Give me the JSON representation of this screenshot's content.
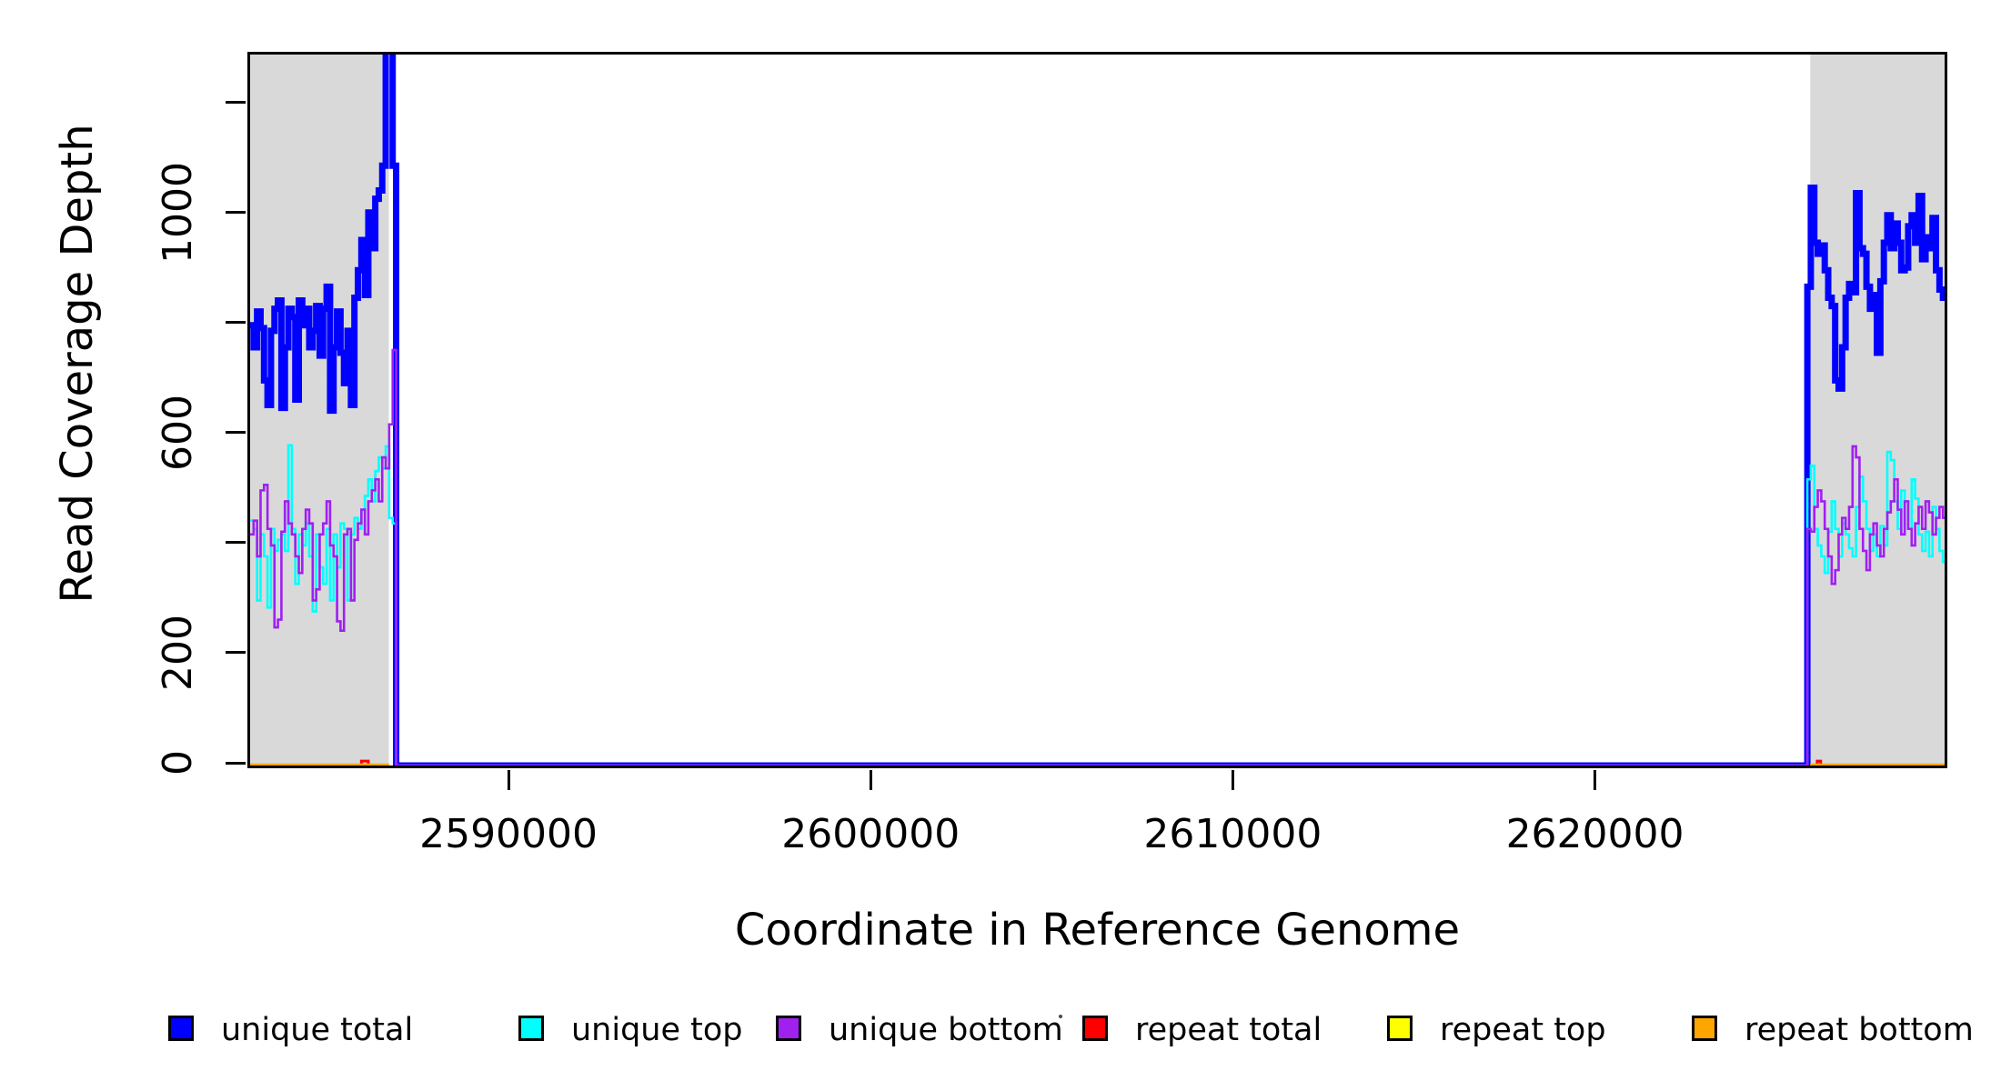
{
  "figure_title": "",
  "axes": {
    "x": {
      "label": "Coordinate in Reference Genome",
      "tick_values": [
        2590000,
        2600000,
        2610000,
        2620000
      ],
      "tick_labels": [
        "2590000",
        "2600000",
        "2610000",
        "2620000"
      ]
    },
    "y": {
      "label": "Read Coverage Depth",
      "tick_values": [
        0,
        200,
        400,
        600,
        800,
        1000,
        1200
      ],
      "labeled_tick_values": [
        0,
        200,
        600,
        1000
      ],
      "labeled_tick_labels": [
        "0",
        "200",
        "600",
        "1000"
      ]
    }
  },
  "colors": {
    "unique_total": "#0000FF",
    "unique_top": "#00FFFF",
    "unique_bottom": "#A020F0",
    "repeat_total": "#FF0000",
    "repeat_top": "#FFFF00",
    "repeat_bottom": "#FFA500",
    "shaded_region": "#D9D9D9",
    "axis": "#000000"
  },
  "legend": {
    "items": [
      {
        "label": "unique total",
        "color": "#0000FF"
      },
      {
        "label": "unique top",
        "color": "#00FFFF"
      },
      {
        "label": "unique bottom",
        "color": "#A020F0"
      },
      {
        "label": "repeat total",
        "color": "#FF0000"
      },
      {
        "label": "repeat top",
        "color": "#FFFF00"
      },
      {
        "label": "repeat bottom",
        "color": "#FFA500"
      }
    ]
  },
  "chart_data": {
    "type": "line",
    "subtype": "step-coverage",
    "title": "",
    "xlabel": "Coordinate in Reference Genome",
    "ylabel": "Read Coverage Depth",
    "xlim": [
      2582790,
      2629580
    ],
    "ylim": [
      0,
      1292
    ],
    "grid": false,
    "legend_position": "bottom",
    "shaded_regions": [
      {
        "x0": 2582790,
        "x1": 2586620,
        "color": "#D9D9D9"
      },
      {
        "x0": 2625870,
        "x1": 2629580,
        "color": "#D9D9D9"
      }
    ],
    "window_size": 96,
    "series": [
      {
        "name": "unique total",
        "color": "#0000FF",
        "line_width": 7,
        "bridge_to_zero": true,
        "segments": [
          {
            "x0": 2582790,
            "dx": 96,
            "values": [
              800,
              760,
              825,
              795,
              700,
              655,
              790,
              830,
              845,
              650,
              760,
              830,
              815,
              665,
              845,
              800,
              830,
              760,
              790,
              835,
              745,
              830,
              870,
              645,
              760,
              825,
              750,
              695,
              790,
              655,
              850,
              900,
              955,
              855,
              1005,
              940,
              1030,
              1045,
              1090,
              1310,
              1310,
              1090
            ]
          },
          {
            "x0": 2625790,
            "dx": 96,
            "values": [
              870,
              1050,
              950,
              930,
              945,
              900,
              850,
              835,
              700,
              685,
              760,
              850,
              875,
              860,
              1040,
              940,
              930,
              870,
              830,
              855,
              750,
              880,
              950,
              1000,
              940,
              985,
              950,
              900,
              905,
              980,
              1000,
              950,
              1035,
              920,
              960,
              940,
              995,
              900,
              865,
              850
            ]
          }
        ]
      },
      {
        "name": "unique top",
        "color": "#00FFFF",
        "line_width": 2.6,
        "bridge_to_zero": true,
        "segments": [
          {
            "x0": 2582790,
            "dx": 96,
            "values": [
              445,
              430,
              300,
              420,
              380,
              287,
              430,
              390,
              410,
              420,
              390,
              582,
              430,
              330,
              420,
              400,
              440,
              380,
              280,
              420,
              360,
              330,
              430,
              300,
              420,
              360,
              440,
              430,
              300,
              420,
              450,
              430,
              465,
              490,
              520,
              480,
              535,
              560,
              540,
              580,
              450,
              440
            ]
          },
          {
            "x0": 2625790,
            "dx": 96,
            "values": [
              520,
              545,
              430,
              400,
              380,
              350,
              425,
              480,
              430,
              380,
              440,
              420,
              395,
              380,
              470,
              525,
              480,
              430,
              390,
              420,
              380,
              435,
              400,
              570,
              555,
              480,
              430,
              500,
              480,
              430,
              520,
              485,
              420,
              390,
              425,
              380,
              470,
              430,
              390,
              370
            ]
          }
        ]
      },
      {
        "name": "unique bottom",
        "color": "#A020F0",
        "line_width": 2.6,
        "bridge_to_zero": true,
        "segments": [
          {
            "x0": 2582790,
            "dx": 96,
            "values": [
              420,
              445,
              380,
              500,
              510,
              430,
              400,
              251,
              265,
              425,
              480,
              440,
              420,
              380,
              350,
              430,
              465,
              440,
              300,
              320,
              420,
              440,
              480,
              400,
              380,
              262,
              245,
              420,
              430,
              300,
              410,
              440,
              465,
              420,
              480,
              500,
              520,
              480,
              560,
              540,
              620,
              755
            ]
          },
          {
            "x0": 2625790,
            "dx": 96,
            "values": [
              430,
              425,
              470,
              500,
              480,
              430,
              380,
              330,
              355,
              420,
              450,
              430,
              470,
              580,
              560,
              430,
              390,
              355,
              420,
              440,
              400,
              380,
              430,
              460,
              480,
              520,
              465,
              420,
              480,
              430,
              400,
              440,
              470,
              430,
              480,
              460,
              420,
              450,
              470,
              450
            ]
          }
        ]
      },
      {
        "name": "repeat total",
        "color": "#FF0000",
        "line_width": 3,
        "bridge_to_zero": false,
        "segments": [
          {
            "x0": 2582790,
            "dx": 96,
            "values": [
              0,
              0,
              0,
              0,
              0,
              0,
              0,
              0,
              0,
              0,
              0,
              0,
              0,
              0,
              0,
              0,
              0,
              0,
              0,
              0,
              0,
              0,
              0,
              0,
              0,
              0,
              0,
              0,
              0,
              0,
              0,
              0,
              8,
              8,
              0,
              0,
              0,
              0,
              0,
              0
            ]
          },
          {
            "x0": 2625870,
            "dx": 96,
            "values": [
              0,
              0,
              8,
              0,
              0,
              0,
              0,
              0,
              0,
              0,
              0,
              0,
              0,
              0,
              0,
              0,
              0,
              0,
              0,
              0,
              0,
              0,
              0,
              0,
              0,
              0,
              0,
              0,
              0,
              0,
              0,
              0,
              0,
              0,
              0,
              0,
              0,
              0,
              0
            ]
          }
        ]
      },
      {
        "name": "repeat top",
        "color": "#FFFF00",
        "line_width": 3,
        "bridge_to_zero": false,
        "segments": [
          {
            "x0": 2582790,
            "dx": 96,
            "values": [
              0,
              0,
              0,
              0,
              0,
              0,
              0,
              0,
              0,
              0,
              0,
              0,
              0,
              0,
              0,
              0,
              0,
              0,
              0,
              0,
              0,
              0,
              0,
              0,
              0,
              0,
              0,
              0,
              0,
              0,
              0,
              0,
              0,
              0,
              0,
              0,
              0,
              0,
              0,
              0
            ]
          },
          {
            "x0": 2625870,
            "dx": 96,
            "values": [
              0,
              0,
              0,
              0,
              0,
              0,
              0,
              0,
              0,
              0,
              0,
              0,
              0,
              0,
              0,
              0,
              0,
              0,
              0,
              0,
              0,
              0,
              0,
              0,
              0,
              0,
              0,
              0,
              0,
              0,
              0,
              0,
              0,
              0,
              0,
              0,
              0,
              0,
              0
            ]
          }
        ]
      },
      {
        "name": "repeat bottom",
        "color": "#FFA500",
        "line_width": 4.5,
        "bridge_to_zero": false,
        "segments": [
          {
            "x0": 2582790,
            "dx": 96,
            "values": [
              0,
              0,
              0,
              0,
              0,
              0,
              0,
              0,
              0,
              0,
              0,
              0,
              0,
              0,
              0,
              0,
              0,
              0,
              0,
              0,
              0,
              0,
              0,
              0,
              0,
              0,
              0,
              0,
              0,
              0,
              0,
              0,
              0,
              0,
              0,
              0,
              0,
              0,
              0,
              0
            ]
          },
          {
            "x0": 2625870,
            "dx": 96,
            "values": [
              0,
              0,
              0,
              0,
              0,
              0,
              0,
              0,
              0,
              0,
              0,
              0,
              0,
              0,
              0,
              0,
              0,
              0,
              0,
              0,
              0,
              0,
              0,
              0,
              0,
              0,
              0,
              0,
              0,
              0,
              0,
              0,
              0,
              0,
              0,
              0,
              0,
              0,
              0
            ]
          }
        ]
      }
    ]
  }
}
